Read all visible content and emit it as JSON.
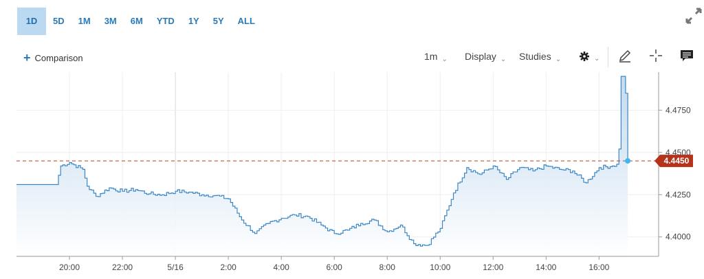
{
  "range_tabs": [
    {
      "label": "1D",
      "active": true
    },
    {
      "label": "5D",
      "active": false
    },
    {
      "label": "1M",
      "active": false
    },
    {
      "label": "3M",
      "active": false
    },
    {
      "label": "6M",
      "active": false
    },
    {
      "label": "YTD",
      "active": false
    },
    {
      "label": "1Y",
      "active": false
    },
    {
      "label": "5Y",
      "active": false
    },
    {
      "label": "ALL",
      "active": false
    }
  ],
  "comparison_label": "Comparison",
  "toolbar": {
    "interval": "1m",
    "display": "Display",
    "studies": "Studies"
  },
  "icons": [
    "expand-icon",
    "settings-gear-icon",
    "draw-pencil-icon",
    "crosshair-icon",
    "comment-icon"
  ],
  "colors": {
    "accent": "#2a7ab8",
    "line": "#3a86c4",
    "price_tag": "#b5321b",
    "dot": "#3bb8f0"
  },
  "chart_data": {
    "type": "area",
    "x_tick_labels": [
      "20:00",
      "22:00",
      "5/16",
      "2:00",
      "4:00",
      "6:00",
      "8:00",
      "10:00",
      "12:00",
      "14:00",
      "16:00"
    ],
    "y_tick_labels": [
      "4.4750",
      "4.4500",
      "4.4250",
      "4.4000"
    ],
    "ylim": [
      4.3885,
      4.4975
    ],
    "current_price": "4.4450",
    "current_value": 4.445,
    "grid": true,
    "x": [
      "18:00",
      "19:30",
      "19:40",
      "20:00",
      "20:30",
      "20:40",
      "21:00",
      "21:30",
      "22:00",
      "22:30",
      "23:00",
      "23:30",
      "0:00",
      "0:30",
      "1:00",
      "1:30",
      "2:00",
      "2:30",
      "3:00",
      "3:30",
      "4:00",
      "4:30",
      "5:00",
      "5:30",
      "6:00",
      "6:30",
      "7:00",
      "7:30",
      "8:00",
      "8:30",
      "9:00",
      "9:30",
      "10:00",
      "10:30",
      "11:00",
      "11:30",
      "12:00",
      "12:30",
      "13:00",
      "13:30",
      "14:00",
      "14:30",
      "15:00",
      "15:30",
      "16:00",
      "16:30",
      "16:40",
      "16:45",
      "16:50",
      "17:00",
      "17:05"
    ],
    "values": [
      4.431,
      4.431,
      4.442,
      4.444,
      4.44,
      4.43,
      4.424,
      4.429,
      4.427,
      4.428,
      4.4255,
      4.425,
      4.427,
      4.4265,
      4.425,
      4.4245,
      4.4225,
      4.41,
      4.402,
      4.408,
      4.411,
      4.413,
      4.412,
      4.407,
      4.402,
      4.404,
      4.408,
      4.41,
      4.403,
      4.407,
      4.396,
      4.395,
      4.405,
      4.426,
      4.441,
      4.437,
      4.442,
      4.434,
      4.441,
      4.439,
      4.442,
      4.44,
      4.439,
      4.432,
      4.441,
      4.442,
      4.443,
      4.452,
      4.495,
      4.485,
      4.445
    ]
  }
}
